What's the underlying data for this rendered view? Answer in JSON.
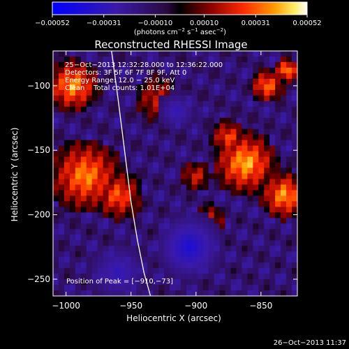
{
  "chart_data": {
    "type": "heatmap",
    "title": "Reconstructed RHESSI Image",
    "xlabel": "Heliocentric X (arcsec)",
    "ylabel": "Heliocentric Y (arcsec)",
    "xlim": [
      -1010,
      -822
    ],
    "ylim": [
      -263,
      -73
    ],
    "x_ticks": [
      -1000,
      -950,
      -900,
      -850
    ],
    "x_tick_labels": [
      "−1000",
      "−950",
      "−900",
      "−850"
    ],
    "y_ticks": [
      -100,
      -150,
      -200,
      -250
    ],
    "y_tick_labels": [
      "−100",
      "−150",
      "−200",
      "−250"
    ],
    "colorbar": {
      "range": [
        -0.00052,
        0.00052
      ],
      "ticks": [
        -0.00052,
        -0.00031,
        -0.0001,
        0.0001,
        0.00031,
        0.00052
      ],
      "tick_labels": [
        "−0.00052",
        "−0.00031",
        "−0.00010",
        "0.00010",
        "0.00031",
        "0.00052"
      ],
      "unit_base": "(photons cm",
      "unit_exp1": "−2",
      "unit_mid1": " s",
      "unit_exp2": "−1",
      "unit_mid2": " asec",
      "unit_exp3": "−2",
      "unit_end": ")"
    },
    "info_lines": [
      "25−Oct−2013 12:32:28.000 to 12:36:22.000",
      "Detectors: 3F 5F 6F 7F 8F 9F, Att 0",
      "Energy Range: 12.0 − 25.0 keV",
      "Clean    Total counts: 1.01E+04"
    ],
    "peak_text": "Position of Peak = [−910,−73]",
    "limb_curve": [
      [
        -965,
        -73
      ],
      [
        -960,
        -110
      ],
      [
        -955,
        -150
      ],
      [
        -950,
        -190
      ],
      [
        -945,
        -220
      ],
      [
        -940,
        -245
      ],
      [
        -935,
        -263
      ]
    ],
    "peak_position": [
      -910,
      -73
    ],
    "colors": {
      "background": "#000000",
      "text": "#ffffff"
    }
  },
  "footer": {
    "timestamp": "26−Oct−2013 11:37"
  }
}
